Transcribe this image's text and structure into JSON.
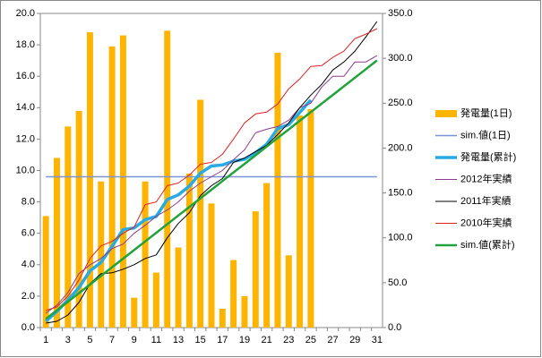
{
  "chart_data": {
    "type": "bar",
    "categories": [
      "1",
      null,
      "3",
      null,
      "5",
      null,
      "7",
      null,
      "9",
      null,
      "11",
      null,
      "13",
      null,
      "15",
      null,
      "17",
      null,
      "19",
      null,
      "21",
      null,
      "23",
      null,
      "25",
      null,
      "27",
      null,
      "29",
      null,
      "31"
    ],
    "ylim": [
      0,
      20
    ],
    "yticks": [
      {
        "value": 0,
        "label": "0.0"
      },
      {
        "value": 2,
        "label": "2.0"
      },
      {
        "value": 4,
        "label": "4.0"
      },
      {
        "value": 6,
        "label": "6.0"
      },
      {
        "value": 8,
        "label": "8.0"
      },
      {
        "value": 10,
        "label": "10.0"
      },
      {
        "value": 12,
        "label": "12.0"
      },
      {
        "value": 14,
        "label": "14.0"
      },
      {
        "value": 16,
        "label": "16.0"
      },
      {
        "value": 18,
        "label": "18.0"
      },
      {
        "value": 20,
        "label": "20.0"
      }
    ],
    "y2lim": [
      0,
      350
    ],
    "y2ticks": [
      {
        "value": 0,
        "label": "0.0"
      },
      {
        "value": 50,
        "label": "50.0"
      },
      {
        "value": 100,
        "label": "100.0"
      },
      {
        "value": 150,
        "label": "150.0"
      },
      {
        "value": 200,
        "label": "200.0"
      },
      {
        "value": 250,
        "label": "250.0"
      },
      {
        "value": 300,
        "label": "300.0"
      },
      {
        "value": 350,
        "label": "350.0"
      }
    ],
    "grid": false,
    "series": [
      {
        "name": "発電量(1日)",
        "type": "bar",
        "color": "#ffb400",
        "values": [
          7.1,
          10.8,
          12.8,
          13.8,
          18.8,
          9.3,
          17.9,
          18.6,
          1.9,
          9.3,
          3.5,
          18.9,
          5.1,
          9.8,
          14.5,
          7.9,
          1.2,
          4.3,
          2.0,
          7.4,
          9.2,
          17.5,
          4.6,
          13.5,
          13.9,
          null,
          null,
          null,
          null,
          null,
          null
        ]
      },
      {
        "name": "sim.値(1日)",
        "type": "line",
        "color": "#7b93d6",
        "width": 1.5,
        "values": [
          9.6,
          9.6,
          9.6,
          9.6,
          9.6,
          9.6,
          9.6,
          9.6,
          9.6,
          9.6,
          9.6,
          9.6,
          9.6,
          9.6,
          9.6,
          9.6,
          9.6,
          9.6,
          9.6,
          9.6,
          9.6,
          9.6,
          9.6,
          9.6,
          9.6,
          9.6,
          9.6,
          9.6,
          9.6,
          9.6,
          9.6
        ]
      },
      {
        "name": "発電量(累計)",
        "type": "line",
        "axis": "y2",
        "color": "#29abe2",
        "width": 3.5,
        "values": [
          7.1,
          17.9,
          30.7,
          44.5,
          63.3,
          72.6,
          90.5,
          109.1,
          111.0,
          120.3,
          123.8,
          142.7,
          147.8,
          157.6,
          172.1,
          180.0,
          181.2,
          185.5,
          187.5,
          194.9,
          204.1,
          221.6,
          226.2,
          239.7,
          253.6,
          null,
          null,
          null,
          null,
          null,
          null
        ]
      },
      {
        "name": "2012年実績",
        "type": "line",
        "axis": "y2",
        "color": "#8e3a8e",
        "width": 1,
        "values": [
          16,
          25,
          39,
          60,
          70,
          77,
          88,
          93,
          105,
          114,
          124,
          131,
          140,
          152,
          161,
          168,
          175,
          187,
          198,
          217,
          221,
          224,
          231,
          245,
          250,
          268,
          280,
          280,
          296,
          296,
          303
        ]
      },
      {
        "name": "2011年実績",
        "type": "line",
        "axis": "y2",
        "color": "#000000",
        "width": 1,
        "values": [
          5,
          7,
          14,
          28,
          49,
          60,
          61,
          65,
          70,
          77,
          81,
          100,
          116,
          128,
          147,
          158,
          166,
          184,
          189,
          196,
          203,
          215,
          228,
          245,
          259,
          271,
          287,
          296,
          308,
          324,
          341
        ]
      },
      {
        "name": "2010年実績",
        "type": "line",
        "axis": "y2",
        "color": "#e02020",
        "width": 1,
        "values": [
          19,
          23,
          35,
          53,
          77,
          91,
          96,
          105,
          112,
          137,
          140,
          158,
          161,
          170,
          182,
          184,
          193,
          210,
          228,
          238,
          240,
          249,
          266,
          277,
          291,
          292,
          301,
          308,
          322,
          327,
          333
        ]
      },
      {
        "name": "sim.値(累計)",
        "type": "line",
        "axis": "y2",
        "color": "#1fa33a",
        "width": 2.5,
        "values": [
          9.6,
          19.2,
          28.8,
          38.4,
          48.0,
          57.6,
          67.2,
          76.8,
          86.4,
          96.0,
          105.6,
          115.2,
          124.8,
          134.4,
          144.0,
          153.6,
          163.2,
          172.8,
          182.4,
          192.0,
          201.6,
          211.2,
          220.8,
          230.4,
          240.0,
          249.6,
          259.2,
          268.8,
          278.4,
          288.0,
          297.6
        ]
      }
    ]
  }
}
